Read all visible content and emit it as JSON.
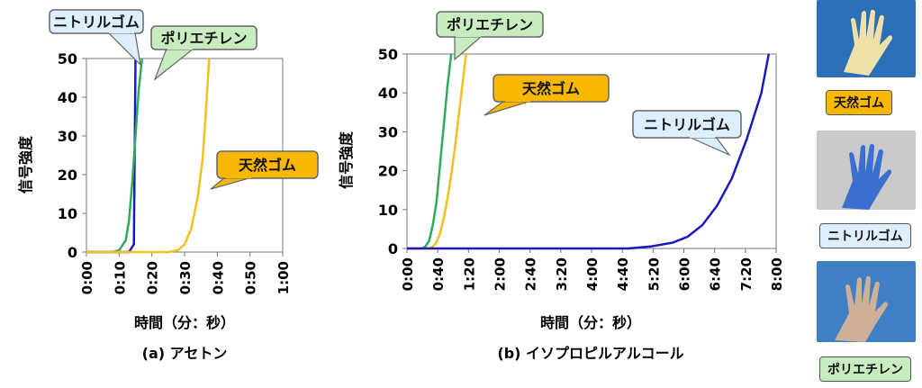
{
  "chart_data": [
    {
      "type": "line",
      "caption": "(a) アセトン",
      "xlabel": "時間（分：秒）",
      "ylabel": "信号強度",
      "ylim": [
        0,
        50
      ],
      "xlim_seconds": [
        0,
        60
      ],
      "x_ticks": [
        "0:00",
        "0:10",
        "0:20",
        "0:30",
        "0:40",
        "0:50",
        "1:00"
      ],
      "y_ticks": [
        "0",
        "10",
        "20",
        "30",
        "40",
        "50"
      ],
      "grid": false,
      "series": [
        {
          "name": "ニトリルゴム",
          "color": "#1a1ab8",
          "x": [
            0,
            10,
            13,
            14.5,
            15,
            15.3
          ],
          "y": [
            0,
            0,
            0,
            2,
            50,
            50
          ]
        },
        {
          "name": "ポリエチレン",
          "color": "#2eaa5a",
          "x": [
            0,
            8,
            10,
            12,
            13,
            14,
            15,
            16,
            17
          ],
          "y": [
            0,
            0,
            0.5,
            3,
            8,
            18,
            30,
            42,
            50
          ]
        },
        {
          "name": "天然ゴム",
          "color": "#f0c020",
          "x": [
            0,
            20,
            25,
            28,
            30,
            32,
            34,
            35.5,
            36.5,
            37.5
          ],
          "y": [
            0,
            0,
            0,
            0.5,
            2,
            6,
            14,
            24,
            36,
            50
          ]
        }
      ],
      "callouts": [
        {
          "label": "ニトリルゴム",
          "fill": "#ddeeff"
        },
        {
          "label": "ポリエチレン",
          "fill": "#c8ecc0"
        },
        {
          "label": "天然ゴム",
          "fill": "#f8b800"
        }
      ]
    },
    {
      "type": "line",
      "caption": "(b) イソプロピルアルコール",
      "xlabel": "時間（分：秒）",
      "ylabel": "信号強度",
      "ylim": [
        0,
        50
      ],
      "xlim_seconds": [
        0,
        500
      ],
      "x_ticks": [
        "0:00",
        "0:40",
        "1:20",
        "2:00",
        "2:40",
        "3:20",
        "4:00",
        "4:40",
        "5:20",
        "6:00",
        "6:40",
        "7:20",
        "8:00"
      ],
      "y_ticks": [
        "0",
        "10",
        "20",
        "30",
        "40",
        "50"
      ],
      "grid": false,
      "series": [
        {
          "name": "ポリエチレン",
          "color": "#2eaa5a",
          "x": [
            0,
            20,
            25,
            30,
            35,
            40,
            45,
            50,
            55,
            60
          ],
          "y": [
            0,
            0,
            0.5,
            2,
            6,
            12,
            22,
            32,
            42,
            50
          ]
        },
        {
          "name": "天然ゴム",
          "color": "#f0c020",
          "x": [
            0,
            30,
            35,
            40,
            45,
            50,
            55,
            60,
            65,
            70,
            75,
            80
          ],
          "y": [
            0,
            0,
            0.5,
            1.5,
            4,
            8,
            13,
            19,
            26,
            34,
            42,
            50
          ]
        },
        {
          "name": "ニトリルゴム",
          "color": "#1a1ab8",
          "x": [
            0,
            260,
            300,
            330,
            360,
            380,
            400,
            420,
            440,
            460,
            480,
            490
          ],
          "y": [
            0,
            0,
            0,
            0.5,
            1.5,
            3,
            6,
            11,
            18,
            28,
            40,
            50
          ]
        }
      ],
      "callouts": [
        {
          "label": "ポリエチレン",
          "fill": "#c8ecc0"
        },
        {
          "label": "天然ゴム",
          "fill": "#f8b800"
        },
        {
          "label": "ニトリルゴム",
          "fill": "#ddeeff"
        }
      ]
    }
  ],
  "side_panel": {
    "items": [
      {
        "label": "天然ゴム",
        "fill": "#f8b800",
        "glove_icon": "natural-rubber-glove-photo",
        "bg": "#2a6fb8",
        "glove": "#efe0a8"
      },
      {
        "label": "ニトリルゴム",
        "fill": "#ddeeff",
        "glove_icon": "nitrile-glove-photo",
        "bg": "#c9c9c9",
        "glove": "#3a6fd0"
      },
      {
        "label": "ポリエチレン",
        "fill": "#c8ecc0",
        "glove_icon": "polyethylene-glove-photo",
        "bg": "#3f7fc6",
        "glove": "#e8b890"
      }
    ]
  }
}
